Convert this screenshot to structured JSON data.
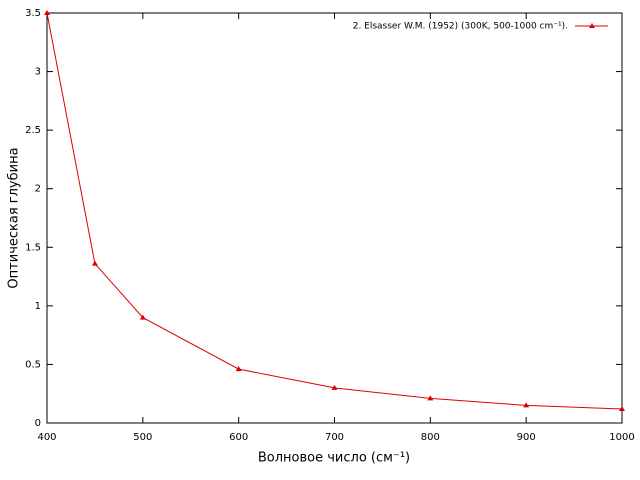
{
  "chart_data": {
    "type": "line",
    "xlabel": "Волновое число (см⁻¹)",
    "ylabel": "Оптическая глубина",
    "x": [
      400,
      450,
      500,
      600,
      700,
      800,
      900,
      1000
    ],
    "series": [
      {
        "name": "2. Elsasser W.M. (1952) (300K, 500-1000 cm⁻¹).",
        "color": "#dd0000",
        "values": [
          3.5,
          1.36,
          0.9,
          0.46,
          0.3,
          0.21,
          0.15,
          0.12
        ]
      }
    ],
    "xlim": [
      400,
      1000
    ],
    "xticks": [
      400,
      500,
      600,
      700,
      800,
      900,
      1000
    ],
    "ylim": [
      0,
      3.5
    ],
    "yticks": [
      0,
      0.5,
      1,
      1.5,
      2,
      2.5,
      3,
      3.5
    ],
    "grid": false,
    "legend": "top-right"
  }
}
